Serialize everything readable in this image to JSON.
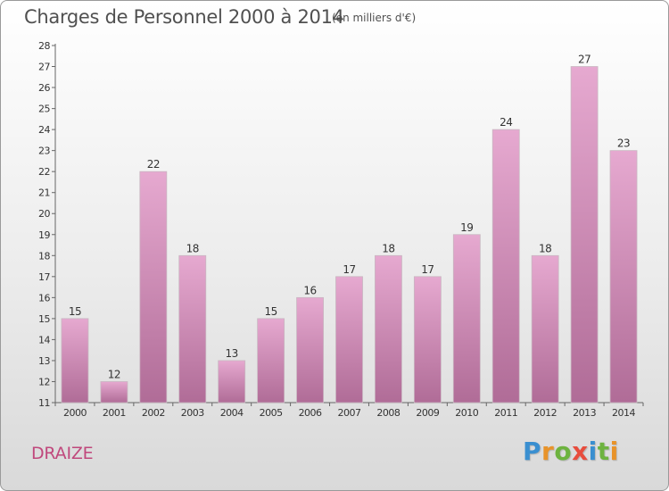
{
  "title": "Charges de Personnel 2000 à 2014",
  "subtitle": "(en milliers d'€)",
  "commune": "DRAIZE",
  "logo": {
    "letters": [
      {
        "ch": "P",
        "color": "#3a8fd0"
      },
      {
        "ch": "r",
        "color": "#e8932a"
      },
      {
        "ch": "o",
        "color": "#6db33f"
      },
      {
        "ch": "x",
        "color": "#e84d3d"
      },
      {
        "ch": "i",
        "color": "#3a8fd0"
      },
      {
        "ch": "t",
        "color": "#6db33f"
      },
      {
        "ch": "i",
        "color": "#e8932a"
      }
    ]
  },
  "colors": {
    "bar_top": "#e6a9d0",
    "bar_bottom": "#b06c97",
    "bar_edge": "#c9b6c1",
    "title_text": "#505050",
    "commune_text": "#c0487c"
  },
  "chart_data": {
    "type": "bar",
    "categories": [
      "2000",
      "2001",
      "2002",
      "2003",
      "2004",
      "2005",
      "2006",
      "2007",
      "2008",
      "2009",
      "2010",
      "2011",
      "2012",
      "2013",
      "2014"
    ],
    "values": [
      15,
      12,
      22,
      18,
      13,
      15,
      16,
      17,
      18,
      17,
      19,
      24,
      18,
      27,
      23
    ],
    "data_labels": [
      "15",
      "12",
      "22",
      "18",
      "13",
      "15",
      "16",
      "17",
      "18",
      "17",
      "19",
      "24",
      "18",
      "27",
      "23"
    ],
    "title": "Charges de Personnel 2000 à 2014",
    "subtitle": "(en milliers d'€)",
    "xlabel": "",
    "ylabel": "",
    "ylim": [
      11,
      28
    ],
    "yticks": [
      11,
      12,
      13,
      14,
      15,
      16,
      17,
      18,
      19,
      20,
      21,
      22,
      23,
      24,
      25,
      26,
      27,
      28
    ],
    "grid": false,
    "legend": "none"
  }
}
